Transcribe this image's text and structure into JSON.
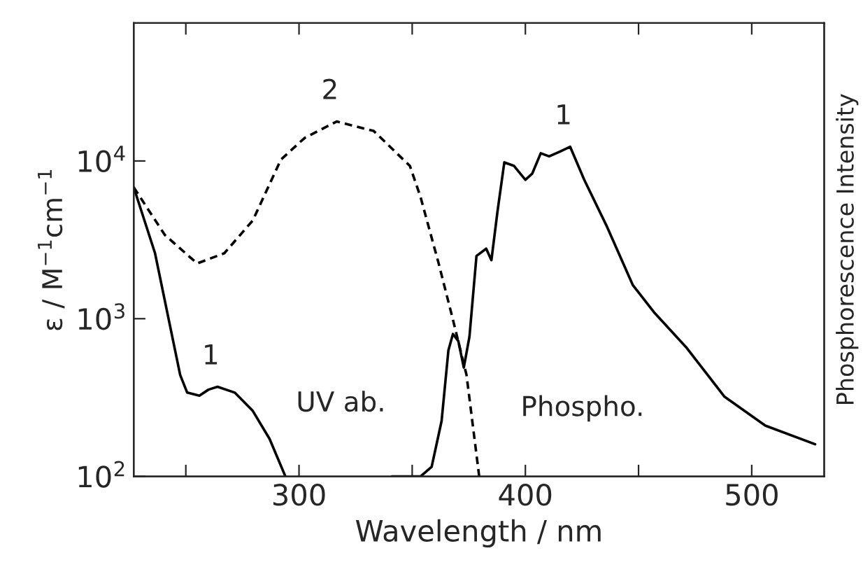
{
  "chart_data": {
    "type": "line",
    "xlabel": "Wavelength / nm",
    "ylabel": "ε / M$^{−1}$cm$^{−1}$",
    "y2label": "Phosphorescence Intensity",
    "log": "y",
    "xlim": [
      227,
      532
    ],
    "ylim": [
      100,
      75000
    ],
    "xticks": [
      {
        "value": 250,
        "label": null
      },
      300,
      {
        "value": 350,
        "label": null
      },
      400,
      {
        "value": 450,
        "label": null
      },
      500
    ],
    "yticks": [
      {
        "value": 100,
        "label": "10$^{2}$"
      },
      {
        "value": 1000,
        "label": "10$^{3}$"
      },
      {
        "value": 10000,
        "label": "10$^{4}$"
      }
    ],
    "series": [
      {
        "name": "1",
        "color": "#000000",
        "line_style": "solid",
        "x": [
          227,
          236.4,
          247.5,
          250.6,
          256,
          260,
          264,
          271.6,
          279.6,
          287,
          294
        ],
        "values": [
          6800,
          2600,
          440,
          340,
          325,
          355,
          370,
          340,
          260,
          173,
          100
        ]
      },
      {
        "name": "2",
        "color": "#000000",
        "line_style": "dashed",
        "x": [
          227,
          240.7,
          255,
          267,
          279.6,
          292,
          302.5,
          316.7,
          333,
          349,
          353.7,
          361.7,
          367.9,
          374,
          379.6
        ],
        "values": [
          6800,
          3400,
          2240,
          2600,
          4200,
          10200,
          14000,
          17800,
          15500,
          9300,
          5900,
          2240,
          1000,
          440,
          100
        ]
      },
      {
        "name": "1",
        "color": "#000000",
        "line_style": "solid",
        "x": [
          341,
          353.7,
          358.6,
          363,
          366,
          368,
          370.4,
          372.8,
          375.3,
          378.4,
          382.7,
          385,
          387.7,
          390.7,
          395,
          400,
          403,
          406.8,
          410.5,
          415.4,
          419.8,
          426,
          435.8,
          447.5,
          456.8,
          471,
          488,
          506,
          528
        ],
        "values": [
          100,
          100,
          115,
          225,
          630,
          800,
          720,
          490,
          770,
          2500,
          2780,
          2350,
          4800,
          9800,
          9300,
          7600,
          8300,
          11200,
          10700,
          11500,
          12300,
          7600,
          3900,
          1630,
          1100,
          660,
          320,
          210,
          160
        ]
      }
    ],
    "annotations": [
      "UV ab.",
      "Phospho."
    ]
  }
}
